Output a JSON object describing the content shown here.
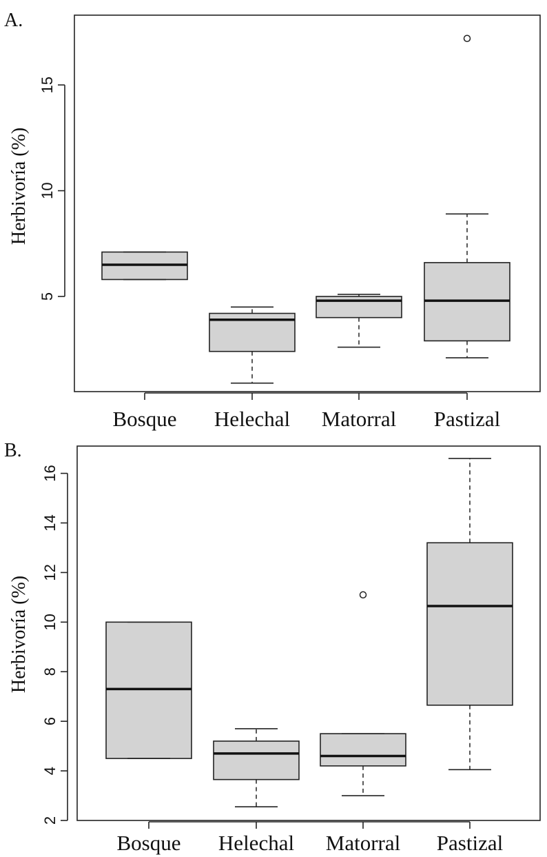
{
  "chart_data": [
    {
      "type": "boxplot",
      "panel": "A.",
      "ylabel": "Herbivoría (%)",
      "categories": [
        "Bosque",
        "Helechal",
        "Matorral",
        "Pastizal"
      ],
      "yticks": [
        5,
        10,
        15
      ],
      "ylim": [
        0.5,
        18.3
      ],
      "boxes": [
        {
          "name": "Bosque",
          "whisker_low": 5.8,
          "q1": 5.8,
          "median": 6.5,
          "q3": 7.1,
          "whisker_high": 7.1,
          "outliers": []
        },
        {
          "name": "Helechal",
          "whisker_low": 0.9,
          "q1": 2.4,
          "median": 3.9,
          "q3": 4.2,
          "whisker_high": 4.5,
          "outliers": []
        },
        {
          "name": "Matorral",
          "whisker_low": 2.6,
          "q1": 4.0,
          "median": 4.8,
          "q3": 5.0,
          "whisker_high": 5.1,
          "outliers": []
        },
        {
          "name": "Pastizal",
          "whisker_low": 2.1,
          "q1": 2.9,
          "median": 4.8,
          "q3": 6.6,
          "whisker_high": 8.9,
          "outliers": [
            17.2
          ]
        }
      ]
    },
    {
      "type": "boxplot",
      "panel": "B.",
      "ylabel": "Herbivoría (%)",
      "categories": [
        "Bosque",
        "Helechal",
        "Matorral",
        "Pastizal"
      ],
      "yticks": [
        2,
        4,
        6,
        8,
        10,
        12,
        14,
        16
      ],
      "ylim": [
        2,
        17.1
      ],
      "boxes": [
        {
          "name": "Bosque",
          "whisker_low": 4.5,
          "q1": 4.5,
          "median": 7.3,
          "q3": 10.0,
          "whisker_high": 10.0,
          "outliers": []
        },
        {
          "name": "Helechal",
          "whisker_low": 2.55,
          "q1": 3.65,
          "median": 4.7,
          "q3": 5.2,
          "whisker_high": 5.7,
          "outliers": []
        },
        {
          "name": "Matorral",
          "whisker_low": 3.0,
          "q1": 4.2,
          "median": 4.6,
          "q3": 5.5,
          "whisker_high": 5.5,
          "outliers": [
            11.1
          ]
        },
        {
          "name": "Pastizal",
          "whisker_low": 4.05,
          "q1": 6.65,
          "median": 10.65,
          "q3": 13.2,
          "whisker_high": 16.6,
          "outliers": []
        }
      ]
    }
  ]
}
